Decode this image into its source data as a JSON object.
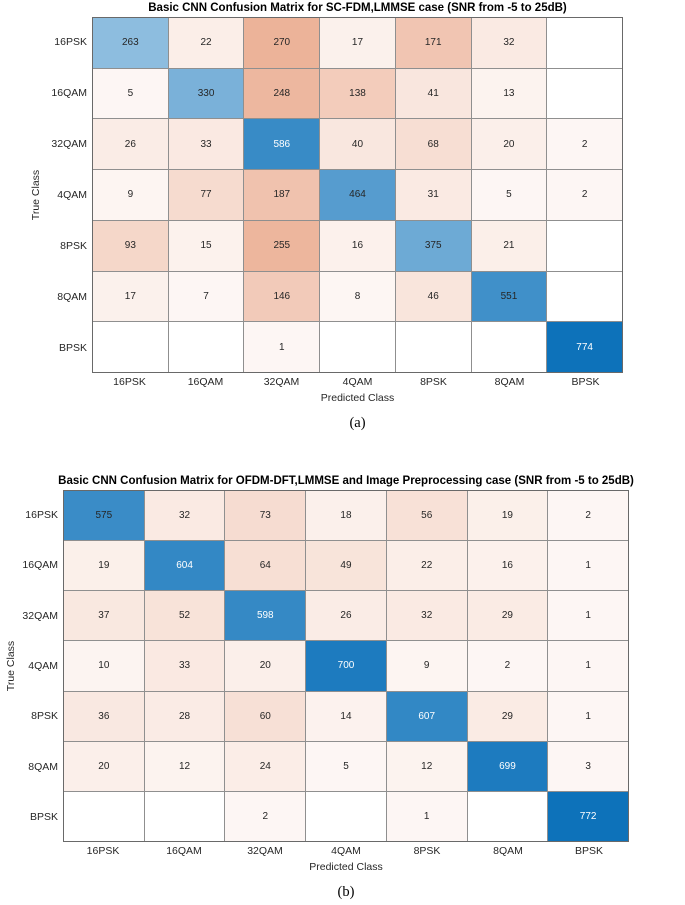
{
  "colors": {
    "background": "#ffffff",
    "diagonal_max": "#0d72ba",
    "offdiagonal_max": "#dc7040",
    "cell_text_dark": "#262626",
    "cell_text_light": "#ffffff",
    "grid_line": "#8f8f8f",
    "outer_border": "#696969",
    "axis_text": "#262626",
    "title_text": "#000000"
  },
  "chart_data": [
    {
      "type": "heatmap",
      "subtype": "confusion-matrix",
      "title": "Basic CNN Confusion Matrix for SC-FDM,LMMSE case (SNR from -5 to 25dB)",
      "xlabel": "Predicted Class",
      "ylabel": "True Class",
      "caption": "(a)",
      "classes": [
        "16PSK",
        "16QAM",
        "32QAM",
        "4QAM",
        "8PSK",
        "8QAM",
        "BPSK"
      ],
      "matrix": [
        [
          263,
          22,
          270,
          17,
          171,
          32,
          0
        ],
        [
          5,
          330,
          248,
          138,
          41,
          13,
          0
        ],
        [
          26,
          33,
          586,
          40,
          68,
          20,
          2
        ],
        [
          9,
          77,
          187,
          464,
          31,
          5,
          2
        ],
        [
          93,
          15,
          255,
          16,
          375,
          21,
          0
        ],
        [
          17,
          7,
          146,
          8,
          46,
          551,
          0
        ],
        [
          0,
          0,
          1,
          0,
          0,
          0,
          774
        ]
      ],
      "note": "zero cells are rendered blank/white"
    },
    {
      "type": "heatmap",
      "subtype": "confusion-matrix",
      "title": "Basic CNN Confusion Matrix for OFDM-DFT,LMMSE and Image Preprocessing case (SNR from -5 to 25dB)",
      "xlabel": "Predicted Class",
      "ylabel": "True Class",
      "caption": "(b)",
      "classes": [
        "16PSK",
        "16QAM",
        "32QAM",
        "4QAM",
        "8PSK",
        "8QAM",
        "BPSK"
      ],
      "matrix": [
        [
          575,
          32,
          73,
          18,
          56,
          19,
          2
        ],
        [
          19,
          604,
          64,
          49,
          22,
          16,
          1
        ],
        [
          37,
          52,
          598,
          26,
          32,
          29,
          1
        ],
        [
          10,
          33,
          20,
          700,
          9,
          2,
          1
        ],
        [
          36,
          28,
          60,
          14,
          607,
          29,
          1
        ],
        [
          20,
          12,
          24,
          5,
          12,
          699,
          3
        ],
        [
          0,
          0,
          2,
          0,
          1,
          0,
          772
        ]
      ],
      "note": "zero cells are rendered blank/white"
    }
  ]
}
